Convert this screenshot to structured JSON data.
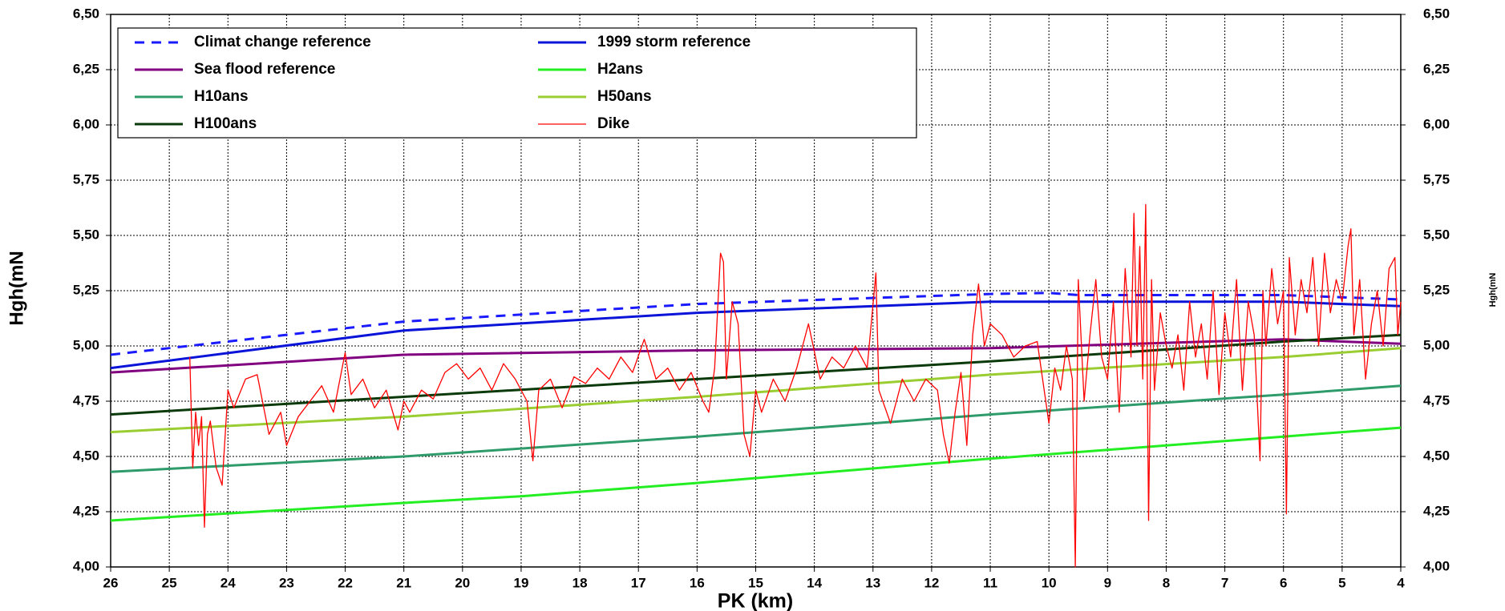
{
  "chart_data": {
    "type": "line",
    "xlabel": "PK (km)",
    "ylabel": "Hgh(mN",
    "y2label": "Hgh(mN",
    "xlim": [
      26,
      4
    ],
    "xticks": [
      26,
      25,
      24,
      23,
      22,
      21,
      20,
      19,
      18,
      17,
      16,
      15,
      14,
      13,
      12,
      11,
      10,
      9,
      8,
      7,
      6,
      5,
      4
    ],
    "ylim": [
      4,
      6.5
    ],
    "yticks": [
      {
        "value": 4,
        "label": "4,00"
      },
      {
        "value": 4.25,
        "label": "4,25"
      },
      {
        "value": 4.5,
        "label": "4,50"
      },
      {
        "value": 4.75,
        "label": "4,75"
      },
      {
        "value": 5,
        "label": "5,00"
      },
      {
        "value": 5.25,
        "label": "5,25"
      },
      {
        "value": 5.5,
        "label": "5,50"
      },
      {
        "value": 5.75,
        "label": "5,75"
      },
      {
        "value": 6,
        "label": "6,00"
      },
      {
        "value": 6.25,
        "label": "6,25"
      },
      {
        "value": 6.5,
        "label": "6,50"
      }
    ],
    "y2lim": [
      4,
      6.5
    ],
    "y2ticks": [
      {
        "value": 4,
        "label": "4,00"
      },
      {
        "value": 4.25,
        "label": "4,25"
      },
      {
        "value": 4.5,
        "label": "4,50"
      },
      {
        "value": 4.75,
        "label": "4,75"
      },
      {
        "value": 5,
        "label": "5,00"
      },
      {
        "value": 5.25,
        "label": "5,25"
      },
      {
        "value": 5.5,
        "label": "5,50"
      },
      {
        "value": 5.75,
        "label": "5,75"
      },
      {
        "value": 6,
        "label": "6,00"
      },
      {
        "value": 6.25,
        "label": "6,25"
      },
      {
        "value": 6.5,
        "label": "6,50"
      }
    ],
    "grid": true,
    "legend": "upper left",
    "series": [
      {
        "name": "Climat change reference",
        "color": "#1a1aff",
        "linestyle": "dashed",
        "x": [
          26,
          21,
          16,
          11,
          10,
          9.5,
          6,
          4
        ],
        "values": [
          4.96,
          5.11,
          5.19,
          5.235,
          5.24,
          5.23,
          5.23,
          5.21
        ]
      },
      {
        "name": "1999 storm reference",
        "color": "#0a14d8",
        "linestyle": "solid",
        "x": [
          26,
          21,
          16,
          11,
          6,
          5,
          4
        ],
        "values": [
          4.9,
          5.07,
          5.15,
          5.2,
          5.2,
          5.19,
          5.18
        ]
      },
      {
        "name": "Sea flood reference",
        "color": "#800080",
        "linestyle": "solid",
        "x": [
          26,
          21,
          16,
          11,
          6,
          4
        ],
        "values": [
          4.88,
          4.96,
          4.98,
          4.99,
          5.03,
          5.01
        ]
      },
      {
        "name": "H2ans",
        "color": "#22ee22",
        "linestyle": "solid",
        "x": [
          26,
          21,
          19,
          16,
          11,
          6,
          4
        ],
        "values": [
          4.21,
          4.29,
          4.32,
          4.38,
          4.49,
          4.59,
          4.63
        ]
      },
      {
        "name": "H10ans",
        "color": "#2e9b6a",
        "linestyle": "solid",
        "x": [
          26,
          21,
          16,
          11,
          6,
          4
        ],
        "values": [
          4.43,
          4.5,
          4.59,
          4.69,
          4.78,
          4.82
        ]
      },
      {
        "name": "H50ans",
        "color": "#9acd32",
        "linestyle": "solid",
        "x": [
          26,
          21,
          16,
          11,
          6,
          4
        ],
        "values": [
          4.61,
          4.68,
          4.77,
          4.87,
          4.95,
          4.99
        ]
      },
      {
        "name": "H100ans",
        "color": "#0a3a0a",
        "linestyle": "solid",
        "x": [
          26,
          21,
          16,
          11,
          6,
          4
        ],
        "values": [
          4.69,
          4.77,
          4.85,
          4.93,
          5.02,
          5.05
        ]
      },
      {
        "name": "Dike",
        "color": "#ff0000",
        "linestyle": "solid",
        "thin": true,
        "x": [
          24.65,
          24.6,
          24.55,
          24.5,
          24.45,
          24.4,
          24.35,
          24.3,
          24.2,
          24.1,
          24.0,
          23.9,
          23.7,
          23.5,
          23.3,
          23.1,
          23.0,
          22.8,
          22.6,
          22.4,
          22.2,
          22.0,
          21.9,
          21.7,
          21.5,
          21.3,
          21.1,
          21.0,
          20.9,
          20.7,
          20.5,
          20.3,
          20.1,
          19.9,
          19.7,
          19.5,
          19.3,
          19.1,
          18.9,
          18.8,
          18.7,
          18.5,
          18.3,
          18.1,
          17.9,
          17.7,
          17.5,
          17.3,
          17.1,
          16.9,
          16.7,
          16.5,
          16.3,
          16.1,
          15.9,
          15.8,
          15.7,
          15.6,
          15.55,
          15.5,
          15.4,
          15.3,
          15.2,
          15.1,
          15.0,
          14.9,
          14.7,
          14.5,
          14.3,
          14.1,
          13.9,
          13.7,
          13.5,
          13.3,
          13.1,
          12.95,
          12.9,
          12.7,
          12.5,
          12.3,
          12.1,
          11.9,
          11.8,
          11.7,
          11.6,
          11.5,
          11.4,
          11.3,
          11.2,
          11.1,
          11.0,
          10.8,
          10.6,
          10.4,
          10.2,
          10.0,
          9.9,
          9.8,
          9.7,
          9.6,
          9.55,
          9.5,
          9.4,
          9.3,
          9.2,
          9.1,
          9.0,
          8.9,
          8.8,
          8.7,
          8.6,
          8.55,
          8.5,
          8.45,
          8.4,
          8.35,
          8.3,
          8.25,
          8.2,
          8.1,
          8.0,
          7.9,
          7.8,
          7.7,
          7.6,
          7.5,
          7.4,
          7.3,
          7.2,
          7.1,
          7.0,
          6.9,
          6.8,
          6.7,
          6.6,
          6.5,
          6.4,
          6.35,
          6.3,
          6.2,
          6.1,
          6.0,
          5.95,
          5.9,
          5.8,
          5.7,
          5.6,
          5.5,
          5.4,
          5.3,
          5.2,
          5.1,
          5.0,
          4.9,
          4.85,
          4.8,
          4.7,
          4.6,
          4.5,
          4.4,
          4.3,
          4.2,
          4.1,
          4.05,
          4.0
        ],
        "values": [
          4.95,
          4.45,
          4.7,
          4.55,
          4.68,
          4.18,
          4.6,
          4.66,
          4.45,
          4.37,
          4.8,
          4.72,
          4.85,
          4.87,
          4.6,
          4.7,
          4.55,
          4.68,
          4.75,
          4.82,
          4.7,
          4.97,
          4.78,
          4.85,
          4.72,
          4.8,
          4.62,
          4.75,
          4.7,
          4.8,
          4.76,
          4.88,
          4.92,
          4.85,
          4.9,
          4.8,
          4.92,
          4.85,
          4.75,
          4.48,
          4.8,
          4.85,
          4.72,
          4.86,
          4.83,
          4.9,
          4.85,
          4.95,
          4.88,
          5.03,
          4.85,
          4.9,
          4.8,
          4.88,
          4.75,
          4.7,
          4.9,
          5.42,
          5.38,
          4.85,
          5.2,
          5.1,
          4.6,
          4.5,
          4.8,
          4.7,
          4.85,
          4.75,
          4.9,
          5.1,
          4.85,
          4.95,
          4.9,
          5.0,
          4.9,
          5.33,
          4.8,
          4.65,
          4.85,
          4.75,
          4.85,
          4.8,
          4.6,
          4.47,
          4.7,
          4.88,
          4.55,
          5.05,
          5.28,
          5.0,
          5.1,
          5.05,
          4.95,
          5.0,
          5.02,
          4.65,
          4.9,
          4.8,
          5.0,
          4.85,
          4.0,
          5.3,
          4.75,
          5.05,
          5.3,
          4.95,
          4.85,
          5.2,
          4.7,
          5.35,
          4.95,
          5.6,
          5.0,
          5.45,
          4.85,
          5.64,
          4.21,
          5.3,
          4.8,
          5.15,
          5.0,
          4.9,
          5.05,
          4.8,
          5.2,
          4.95,
          5.1,
          4.85,
          5.25,
          4.78,
          5.15,
          4.95,
          5.3,
          4.8,
          5.2,
          5.05,
          4.48,
          5.25,
          5.0,
          5.35,
          5.1,
          5.25,
          4.24,
          5.4,
          5.05,
          5.3,
          5.15,
          5.4,
          5.0,
          5.42,
          5.15,
          5.3,
          5.2,
          5.45,
          5.53,
          5.05,
          5.3,
          4.85,
          5.1,
          5.25,
          5.0,
          5.35,
          5.4,
          5.05,
          5.2
        ]
      }
    ]
  }
}
